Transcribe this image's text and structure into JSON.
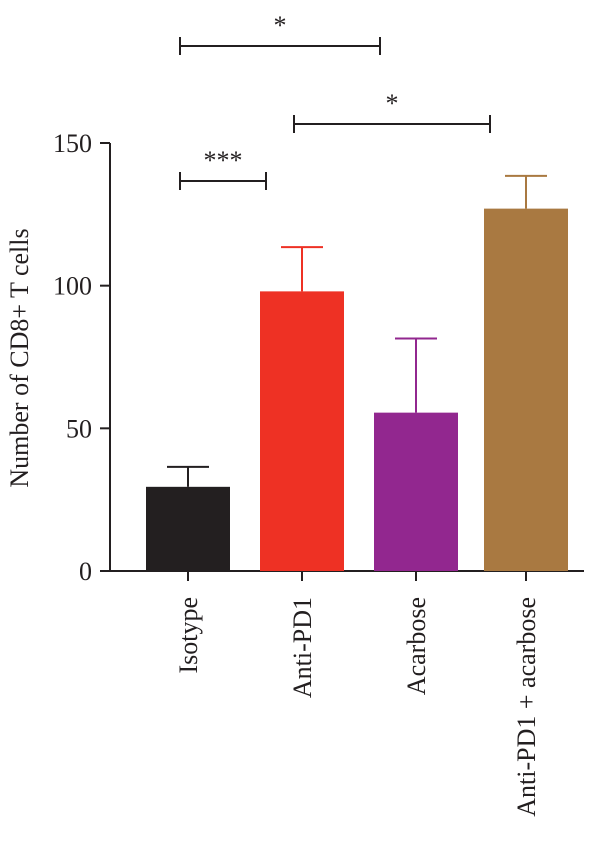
{
  "chart_data": {
    "type": "bar",
    "ylabel": "Number of CD8+ T cells",
    "ylim": [
      0,
      150
    ],
    "yticks": [
      0,
      50,
      100,
      150
    ],
    "categories": [
      "Isotype",
      "Anti-PD1",
      "Acarbose",
      "Anti-PD1 + acarbose"
    ],
    "values": [
      29.5,
      98,
      55.5,
      127
    ],
    "errors": [
      7,
      15.5,
      26,
      11.5
    ],
    "colors": [
      "#231f20",
      "#ee3124",
      "#92278f",
      "#a97941"
    ],
    "significance": [
      {
        "from": 0,
        "to": 1,
        "label": "***"
      },
      {
        "from": 1,
        "to": 3,
        "label": "*"
      },
      {
        "from": 0,
        "to": 2,
        "label": "*"
      }
    ],
    "grid": false,
    "legend": "none"
  }
}
